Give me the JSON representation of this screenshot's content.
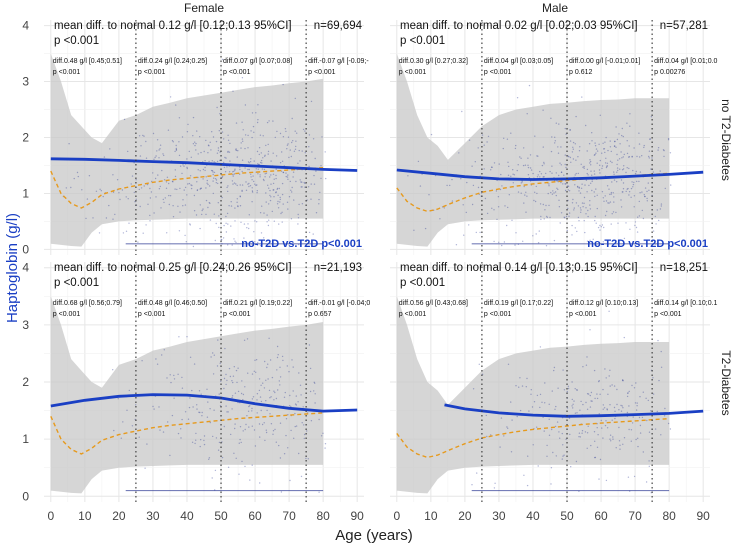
{
  "chart_data": {
    "type": "scatter",
    "ylabel": "Haptoglobin (g/l)",
    "xlabel": "Age (years)",
    "columns": [
      "Female",
      "Male"
    ],
    "rows": [
      "no T2-Diabetes",
      "T2-Diabetes"
    ],
    "xlim": [
      -2,
      92
    ],
    "ylim": [
      -0.1,
      4.1
    ],
    "xticks": [
      0,
      10,
      20,
      30,
      40,
      50,
      60,
      70,
      80,
      90
    ],
    "yticks": [
      0,
      1,
      2,
      3,
      4
    ],
    "cut_lines": [
      25,
      50,
      75
    ],
    "colors": {
      "trend": "#1a3fc4",
      "normal": "#e69a1e",
      "band": "#c8c8c8",
      "points": "#1c2a8c",
      "accent": "#1a3fc4"
    },
    "normal_reference": {
      "female": {
        "x": [
          0,
          3,
          6,
          9,
          12,
          15,
          20,
          25,
          30,
          35,
          40,
          45,
          50,
          55,
          60,
          65,
          70,
          75,
          80
        ],
        "y": [
          1.4,
          1.0,
          0.82,
          0.74,
          0.84,
          0.98,
          1.08,
          1.14,
          1.2,
          1.24,
          1.27,
          1.3,
          1.33,
          1.36,
          1.38,
          1.4,
          1.42,
          1.44,
          1.46
        ]
      },
      "male": {
        "x": [
          0,
          3,
          6,
          9,
          12,
          15,
          20,
          25,
          30,
          35,
          40,
          45,
          50,
          55,
          60,
          65,
          70,
          75,
          80
        ],
        "y": [
          1.1,
          0.86,
          0.74,
          0.68,
          0.72,
          0.8,
          0.92,
          1.02,
          1.08,
          1.13,
          1.17,
          1.2,
          1.23,
          1.26,
          1.28,
          1.3,
          1.32,
          1.34,
          1.36
        ]
      }
    },
    "reference_band": {
      "female": {
        "x": [
          0,
          3,
          6,
          9,
          12,
          15,
          20,
          25,
          30,
          35,
          40,
          45,
          50,
          55,
          60,
          65,
          70,
          75,
          80
        ],
        "lower": [
          0.1,
          0.08,
          0.06,
          0.05,
          0.3,
          0.45,
          0.5,
          0.52,
          0.53,
          0.54,
          0.55,
          0.55,
          0.55,
          0.55,
          0.55,
          0.55,
          0.55,
          0.55,
          0.55
        ],
        "upper": [
          3.5,
          3.0,
          2.4,
          2.2,
          2.0,
          1.9,
          2.3,
          2.4,
          2.55,
          2.62,
          2.7,
          2.75,
          2.8,
          2.85,
          2.9,
          2.93,
          2.97,
          3.0,
          3.05
        ]
      },
      "male": {
        "x": [
          0,
          3,
          6,
          9,
          12,
          15,
          20,
          25,
          30,
          35,
          40,
          45,
          50,
          55,
          60,
          65,
          70,
          75,
          80
        ],
        "lower": [
          0.1,
          0.08,
          0.06,
          0.05,
          0.3,
          0.45,
          0.5,
          0.52,
          0.53,
          0.54,
          0.55,
          0.55,
          0.55,
          0.55,
          0.55,
          0.55,
          0.55,
          0.55,
          0.55
        ],
        "upper": [
          3.5,
          3.0,
          2.4,
          2.0,
          1.85,
          1.6,
          1.9,
          2.2,
          2.4,
          2.5,
          2.55,
          2.6,
          2.62,
          2.65,
          2.67,
          2.68,
          2.7,
          2.7,
          2.7
        ]
      }
    },
    "panels": [
      {
        "column": "Female",
        "row": "no T2-Diabetes",
        "mean_text": "mean diff. to normal 0.12 g/l [0.12;0.13 95%CI]",
        "p_text": "p <0.001",
        "n_text": "n=69,694",
        "segments": [
          {
            "diff": "diff.0.48 g/l [0.45;0.51]",
            "p": "p <0.001"
          },
          {
            "diff": "diff.0.24 g/l [0.24;0.25]",
            "p": "p <0.001"
          },
          {
            "diff": "diff.0.07 g/l [0.07;0.08]",
            "p": "p <0.001"
          },
          {
            "diff": "diff.-0.07 g/l [-0.09;-",
            "p": "p <0.001"
          }
        ],
        "comparison": "no-T2D vs.T2D p<0.001",
        "trend": {
          "x": [
            0,
            10,
            20,
            30,
            40,
            50,
            60,
            70,
            80,
            90
          ],
          "y": [
            1.62,
            1.61,
            1.59,
            1.57,
            1.55,
            1.52,
            1.49,
            1.46,
            1.43,
            1.41
          ]
        },
        "point_center": {
          "x": [
            0,
            10,
            20,
            30,
            40,
            50,
            60,
            70,
            80
          ],
          "y": [
            1.1,
            1.15,
            1.2,
            1.25,
            1.3,
            1.3,
            1.3,
            1.3,
            1.3
          ]
        },
        "point_density": [
          0.1,
          0.2,
          0.6,
          1.2,
          1.8,
          2.6,
          3.0,
          2.2,
          0.6
        ]
      },
      {
        "column": "Male",
        "row": "no T2-Diabetes",
        "mean_text": "mean diff. to normal 0.02 g/l [0.02;0.03 95%CI]",
        "p_text": "p <0.001",
        "n_text": "n=57,281",
        "segments": [
          {
            "diff": "diff.0.30 g/l [0.27;0.32]",
            "p": "p <0.001"
          },
          {
            "diff": "diff.0.04 g/l [0.03;0.05]",
            "p": "p <0.001"
          },
          {
            "diff": "diff.0.00 g/l [-0.01;0.01]",
            "p": "p 0.612"
          },
          {
            "diff": "diff.0.04 g/l [0.01;0.0",
            "p": "p 0.00276"
          }
        ],
        "comparison": "no-T2D vs.T2D p<0.001",
        "trend": {
          "x": [
            0,
            10,
            20,
            30,
            40,
            50,
            60,
            70,
            80,
            90
          ],
          "y": [
            1.42,
            1.36,
            1.3,
            1.26,
            1.25,
            1.26,
            1.28,
            1.31,
            1.34,
            1.38
          ]
        },
        "point_center": {
          "x": [
            0,
            10,
            20,
            30,
            40,
            50,
            60,
            70,
            80
          ],
          "y": [
            1.0,
            1.05,
            1.1,
            1.15,
            1.2,
            1.2,
            1.2,
            1.2,
            1.2
          ]
        },
        "point_density": [
          0.1,
          0.2,
          0.5,
          1.0,
          1.6,
          2.4,
          2.8,
          2.0,
          0.5
        ]
      },
      {
        "column": "Female",
        "row": "T2-Diabetes",
        "mean_text": "mean diff. to normal 0.25 g/l [0.24;0.26 95%CI]",
        "p_text": "p <0.001",
        "n_text": "n=21,193",
        "segments": [
          {
            "diff": "diff.0.68 g/l [0.56;0.79]",
            "p": "p <0.001"
          },
          {
            "diff": "diff.0.48 g/l [0.46;0.50]",
            "p": "p <0.001"
          },
          {
            "diff": "diff.0.21 g/l [0.19;0.22]",
            "p": "p <0.001"
          },
          {
            "diff": "diff.-0.01 g/l [-0.04;0",
            "p": "p 0.657"
          }
        ],
        "comparison": "",
        "trend": {
          "x": [
            0,
            10,
            20,
            30,
            40,
            50,
            60,
            70,
            80,
            90
          ],
          "y": [
            1.58,
            1.68,
            1.75,
            1.78,
            1.77,
            1.72,
            1.62,
            1.54,
            1.49,
            1.51
          ]
        },
        "point_center": {
          "x": [
            0,
            10,
            20,
            30,
            40,
            50,
            60,
            70,
            80
          ],
          "y": [
            1.3,
            1.35,
            1.45,
            1.5,
            1.55,
            1.55,
            1.55,
            1.5,
            1.5
          ]
        },
        "point_density": [
          0.05,
          0.05,
          0.15,
          0.4,
          0.8,
          1.3,
          1.6,
          1.3,
          0.4
        ]
      },
      {
        "column": "Male",
        "row": "T2-Diabetes",
        "mean_text": "mean diff. to normal 0.14 g/l [0.13;0.15 95%CI]",
        "p_text": "p <0.001",
        "n_text": "n=18,251",
        "segments": [
          {
            "diff": "diff.0.56 g/l [0.43;0.68]",
            "p": "p <0.001"
          },
          {
            "diff": "diff.0.19 g/l [0.17;0.22]",
            "p": "p <0.001"
          },
          {
            "diff": "diff.0.12 g/l [0.10;0.13]",
            "p": "p <0.001"
          },
          {
            "diff": "diff.0.14 g/l [0.10;0.1",
            "p": "p <0.001"
          }
        ],
        "comparison": "",
        "trend": {
          "x": [
            14,
            20,
            30,
            40,
            50,
            60,
            70,
            80,
            90
          ],
          "y": [
            1.6,
            1.53,
            1.46,
            1.42,
            1.4,
            1.41,
            1.43,
            1.45,
            1.49
          ]
        },
        "point_center": {
          "x": [
            0,
            10,
            20,
            30,
            40,
            50,
            60,
            70,
            80
          ],
          "y": [
            1.2,
            1.25,
            1.3,
            1.35,
            1.4,
            1.4,
            1.4,
            1.4,
            1.4
          ]
        },
        "point_density": [
          0.02,
          0.02,
          0.1,
          0.3,
          0.7,
          1.2,
          1.5,
          1.2,
          0.3
        ]
      }
    ]
  }
}
